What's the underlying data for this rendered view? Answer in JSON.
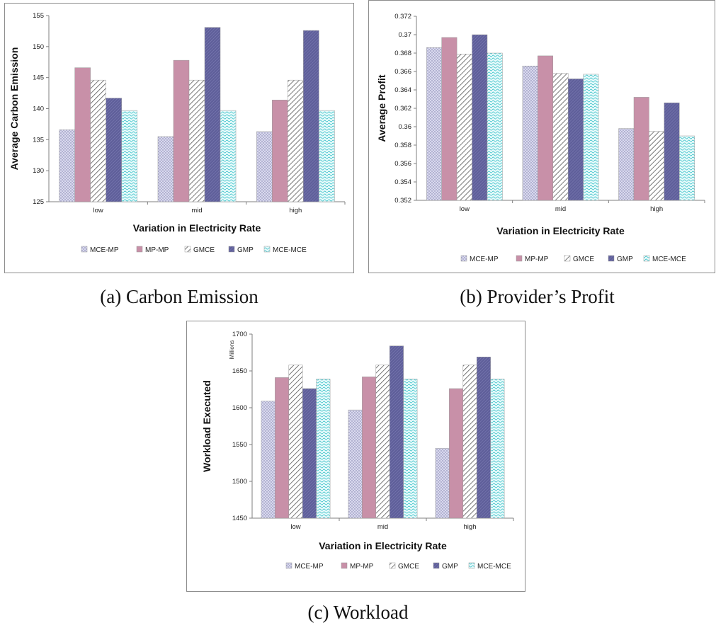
{
  "colors": {
    "MCE-MP": "#d9d9ee",
    "MP-MP": "#c890a8",
    "GMCE": "#d6d6d6",
    "GMP": "#5f5f9a",
    "MCE-MCE": "#bfeef0"
  },
  "captions": {
    "a": "(a) Carbon Emission",
    "b": "(b) Provider’s Profit",
    "c": "(c) Workload"
  },
  "chart_data": [
    {
      "id": "a",
      "type": "bar",
      "title": "",
      "xlabel": "Variation in Electricity Rate",
      "ylabel": "Average Carbon Emission",
      "categories": [
        "low",
        "mid",
        "high"
      ],
      "ylim": [
        125,
        155
      ],
      "yticks": [
        "125",
        "130",
        "135",
        "140",
        "145",
        "150",
        "155"
      ],
      "legend_position": "bottom",
      "grid": false,
      "series": [
        {
          "name": "MCE-MP",
          "values": [
            136.6,
            135.5,
            136.3
          ]
        },
        {
          "name": "MP-MP",
          "values": [
            146.6,
            147.8,
            141.4
          ]
        },
        {
          "name": "GMCE",
          "values": [
            144.6,
            144.6,
            144.6
          ]
        },
        {
          "name": "GMP",
          "values": [
            141.7,
            153.1,
            152.6
          ]
        },
        {
          "name": "MCE-MCE",
          "values": [
            139.7,
            139.7,
            139.7
          ]
        }
      ]
    },
    {
      "id": "b",
      "type": "bar",
      "title": "",
      "xlabel": "Variation in Electricity Rate",
      "ylabel": "Average Profit",
      "categories": [
        "low",
        "mid",
        "high"
      ],
      "ylim": [
        0.352,
        0.372
      ],
      "yticks": [
        "0.352",
        "0.354",
        "0.356",
        "0.358",
        "0.36",
        "0.362",
        "0.364",
        "0.366",
        "0.368",
        "0.37",
        "0.372"
      ],
      "legend_position": "bottom",
      "grid": false,
      "series": [
        {
          "name": "MCE-MP",
          "values": [
            0.3686,
            0.3666,
            0.3598
          ]
        },
        {
          "name": "MP-MP",
          "values": [
            0.3697,
            0.3677,
            0.3632
          ]
        },
        {
          "name": "GMCE",
          "values": [
            0.3679,
            0.3658,
            0.3595
          ]
        },
        {
          "name": "GMP",
          "values": [
            0.37,
            0.3652,
            0.3626
          ]
        },
        {
          "name": "MCE-MCE",
          "values": [
            0.368,
            0.3657,
            0.359
          ]
        }
      ]
    },
    {
      "id": "c",
      "type": "bar",
      "title": "",
      "xlabel": "Variation in Electricity Rate",
      "ylabel": "Workload Executed",
      "unit_label": "Millions",
      "categories": [
        "low",
        "mid",
        "high"
      ],
      "ylim": [
        1450,
        1700
      ],
      "yticks": [
        "1450",
        "1500",
        "1550",
        "1600",
        "1650",
        "1700"
      ],
      "legend_position": "bottom",
      "grid": false,
      "series": [
        {
          "name": "MCE-MP",
          "values": [
            1609,
            1597,
            1545
          ]
        },
        {
          "name": "MP-MP",
          "values": [
            1641,
            1642,
            1626
          ]
        },
        {
          "name": "GMCE",
          "values": [
            1658,
            1658,
            1658
          ]
        },
        {
          "name": "GMP",
          "values": [
            1626,
            1684,
            1669
          ]
        },
        {
          "name": "MCE-MCE",
          "values": [
            1639,
            1639,
            1639
          ]
        }
      ]
    }
  ]
}
